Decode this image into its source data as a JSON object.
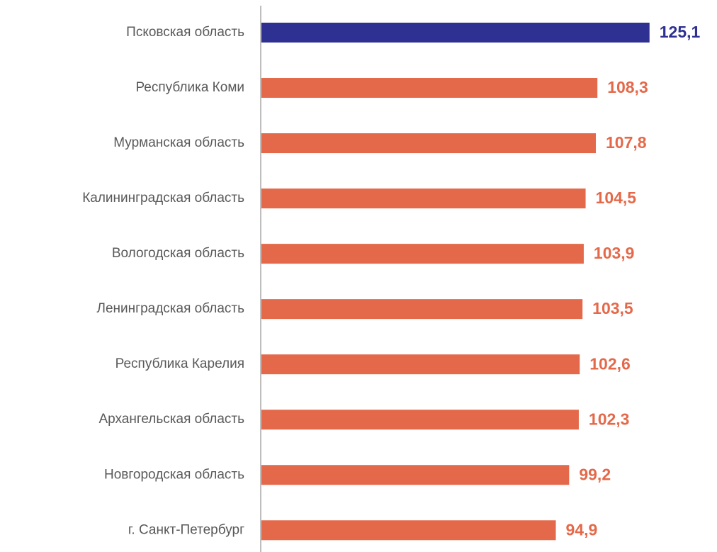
{
  "chart_data": {
    "type": "hbar",
    "categories": [
      "Псковская область",
      "Республика Коми",
      "Мурманская область",
      "Калининградская область",
      "Вологодская область",
      "Ленинградская область",
      "Республика Карелия",
      "Архангельская область",
      "Новгородская область",
      "г. Санкт-Петербург"
    ],
    "values": [
      125.1,
      108.3,
      107.8,
      104.5,
      103.9,
      103.5,
      102.6,
      102.3,
      99.2,
      94.9
    ],
    "value_labels": [
      "125,1",
      "108,3",
      "107,8",
      "104,5",
      "103,9",
      "103,5",
      "102,6",
      "102,3",
      "99,2",
      "94,9"
    ],
    "colors": [
      "#2e3192",
      "#e4694a",
      "#e4694a",
      "#e4694a",
      "#e4694a",
      "#e4694a",
      "#e4694a",
      "#e4694a",
      "#e4694a",
      "#e4694a"
    ],
    "xlim": [
      0,
      140
    ]
  }
}
